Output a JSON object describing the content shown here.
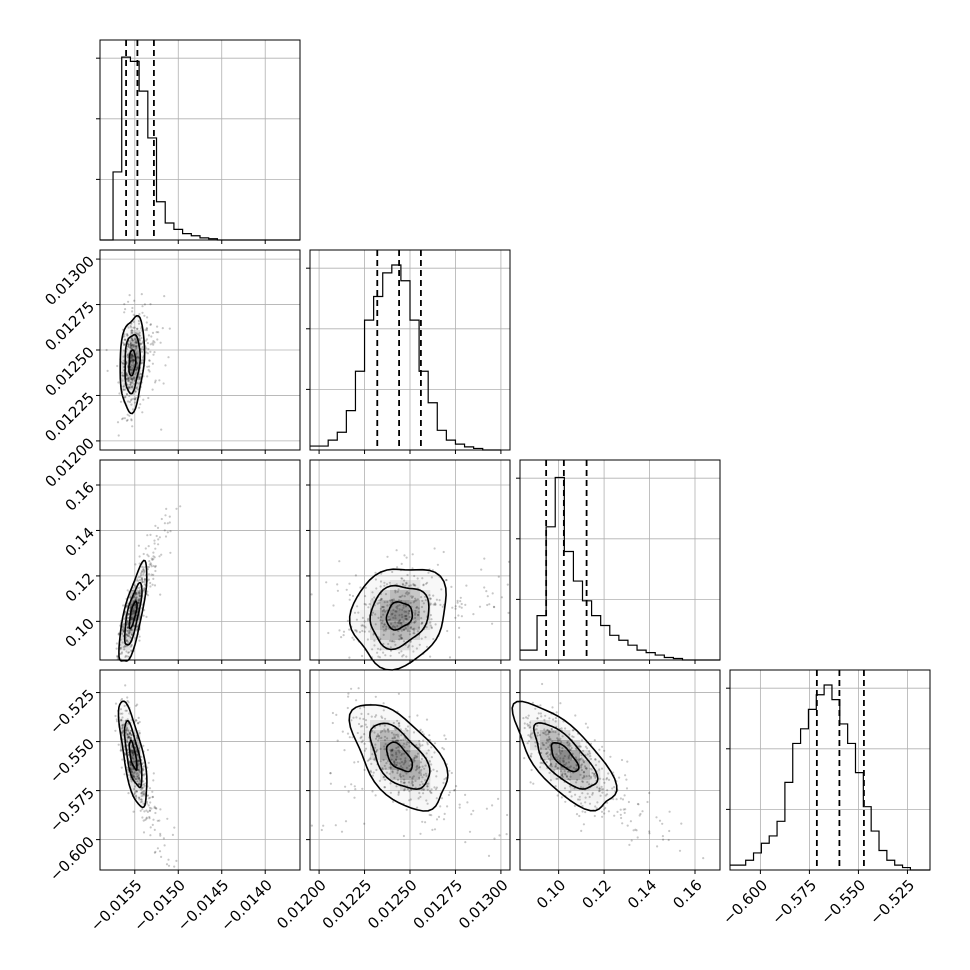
{
  "chart_data": {
    "type": "corner",
    "parameters": [
      {
        "range": [
          -0.0159,
          -0.0136
        ],
        "ticks": [
          -0.0155,
          -0.015,
          -0.0145,
          -0.014
        ],
        "tick_labels": [
          "−0.0155",
          "−0.0150",
          "−0.0145",
          "−0.0140"
        ],
        "quantiles": [
          -0.0156,
          -0.01547,
          -0.01528
        ],
        "hist_max": 43.5,
        "hist_edges": [
          -0.0159,
          -0.01575,
          -0.01565,
          -0.01555,
          -0.01545,
          -0.01535,
          -0.01525,
          -0.01515,
          -0.01505,
          -0.01495,
          -0.01485,
          -0.01475,
          -0.01465,
          -0.01455,
          -0.0136
        ],
        "hist_counts": [
          0,
          16,
          43,
          42,
          35,
          24,
          9,
          4,
          2.5,
          1.5,
          1,
          0.5,
          0.3,
          0
        ]
      },
      {
        "range": [
          0.01195,
          0.01305
        ],
        "ticks": [
          0.012,
          0.01225,
          0.0125,
          0.01275,
          0.013
        ],
        "tick_labels": [
          "0.01200",
          "0.01225",
          "0.01250",
          "0.01275",
          "0.01300"
        ],
        "quantiles": [
          0.01232,
          0.01244,
          0.01256
        ],
        "hist_max": 47,
        "hist_edges": [
          0.01195,
          0.01205,
          0.0121,
          0.01215,
          0.0122,
          0.01225,
          0.0123,
          0.01235,
          0.0124,
          0.01245,
          0.0125,
          0.01255,
          0.0126,
          0.01265,
          0.0127,
          0.01275,
          0.0128,
          0.01285,
          0.0129,
          0.013
        ],
        "hist_counts": [
          1,
          2.5,
          4.5,
          10,
          20,
          33,
          39,
          45,
          47,
          43,
          33,
          20,
          12,
          5,
          2.5,
          1.5,
          0.8,
          0.4,
          0
        ]
      },
      {
        "range": [
          0.083,
          0.171
        ],
        "ticks": [
          0.1,
          0.12,
          0.14,
          0.16
        ],
        "tick_labels": [
          "0.10",
          "0.12",
          "0.14",
          "0.16"
        ],
        "quantiles": [
          0.0945,
          0.1023,
          0.1123
        ],
        "hist_max": 37.5,
        "hist_edges": [
          0.083,
          0.0905,
          0.0945,
          0.0985,
          0.1025,
          0.1065,
          0.1105,
          0.1145,
          0.1185,
          0.1225,
          0.1265,
          0.1305,
          0.1345,
          0.1385,
          0.1425,
          0.1465,
          0.1505,
          0.1545,
          0.171
        ],
        "hist_counts": [
          2,
          9,
          27,
          37,
          22,
          16,
          12,
          9,
          7,
          5,
          4,
          3,
          2,
          1.5,
          1,
          0.5,
          0.3,
          0
        ]
      },
      {
        "range": [
          -0.6155,
          -0.5135
        ],
        "ticks": [
          -0.6,
          -0.575,
          -0.55,
          -0.525
        ],
        "tick_labels": [
          "−0.600",
          "−0.575",
          "−0.550",
          "−0.525"
        ],
        "quantiles": [
          -0.5712,
          -0.5597,
          -0.5472
        ],
        "hist_max": 38,
        "hist_edges": [
          -0.6155,
          -0.6075,
          -0.6035,
          -0.5995,
          -0.5955,
          -0.5915,
          -0.5875,
          -0.5835,
          -0.5795,
          -0.5755,
          -0.5715,
          -0.5675,
          -0.5635,
          -0.5595,
          -0.5555,
          -0.5515,
          -0.5475,
          -0.5435,
          -0.5395,
          -0.5355,
          -0.5315,
          -0.5275,
          -0.5235,
          -0.5135
        ],
        "hist_counts": [
          1,
          2,
          3.5,
          5.5,
          7,
          10,
          18,
          26,
          29,
          33,
          36,
          38,
          35,
          30,
          26,
          20,
          13,
          8,
          4,
          2,
          1,
          0.5,
          0
        ]
      }
    ],
    "pairs": [
      {
        "row": 1,
        "col": 0,
        "center": [
          -0.01553,
          0.01243
        ],
        "sd": [
          7e-05,
          0.00013
        ],
        "corr": 0.2
      },
      {
        "row": 2,
        "col": 0,
        "center": [
          -0.01552,
          0.103
        ],
        "sd": [
          8e-05,
          0.011
        ],
        "corr": 0.75
      },
      {
        "row": 2,
        "col": 1,
        "center": [
          0.01244,
          0.1025
        ],
        "sd": [
          0.00013,
          0.011
        ],
        "corr": 0.15
      },
      {
        "row": 3,
        "col": 0,
        "center": [
          -0.01552,
          -0.557
        ],
        "sd": [
          8e-05,
          0.0135
        ],
        "corr": -0.7
      },
      {
        "row": 3,
        "col": 1,
        "center": [
          0.01244,
          -0.558
        ],
        "sd": [
          0.00013,
          0.0135
        ],
        "corr": -0.55
      },
      {
        "row": 3,
        "col": 2,
        "center": [
          0.1025,
          -0.558
        ],
        "sd": [
          0.011,
          0.0135
        ],
        "corr": -0.7
      }
    ],
    "grid": true
  }
}
